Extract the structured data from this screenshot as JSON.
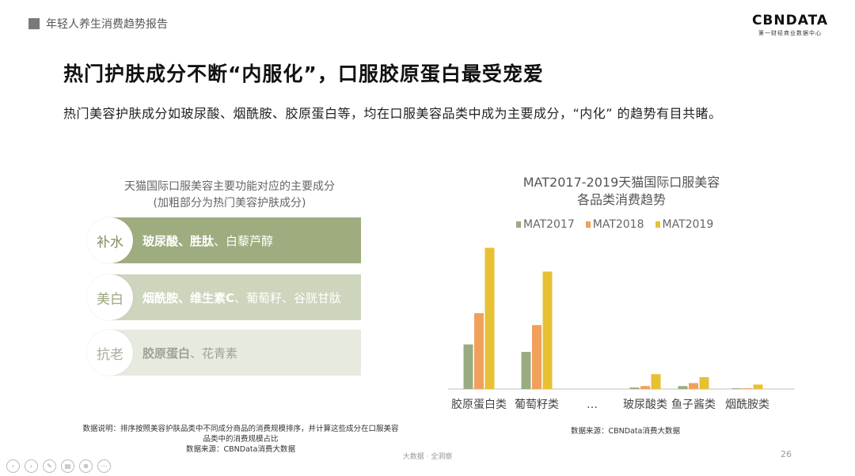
{
  "header": {
    "report_title": "年轻人养生消费趋势报告",
    "logo_brand": "CBNDATA",
    "logo_sub": "第一财经商业数据中心"
  },
  "headline": "热门护肤成分不断“内服化”，口服胶原蛋白最受宠爱",
  "subline": "热门美容护肤成分如玻尿酸、烟酰胺、胶原蛋白等，均在口服美容品类中成为主要成分，“内化” 的趋势有目共睹。",
  "left_panel": {
    "title_line1": "天猫国际口服美容主要功能对应的主要成分",
    "title_line2": "(加粗部分为热门美容护肤成分)",
    "rows": [
      {
        "function": "补水",
        "bold": "玻尿酸、胜肽",
        "rest": "、白藜芦醇"
      },
      {
        "function": "美白",
        "bold": "烟酰胺、维生素C",
        "rest": "、葡萄籽、谷胱甘肽"
      },
      {
        "function": "抗老",
        "bold": "胶原蛋白",
        "rest": "、花青素"
      }
    ],
    "note_line1": "数据说明：排序按照美容护肤品类中不同成分商品的消费规模排序，并计算这些成分在口服美容",
    "note_line2": "品类中的消费规模占比",
    "note_source": "数据来源：CBNData消费大数据"
  },
  "chart_data": {
    "type": "bar",
    "title_line1": "MAT2017-2019天猫国际口服美容",
    "title_line2": "各品类消费趋势",
    "categories": [
      "胶原蛋白类",
      "葡萄籽类",
      "…",
      "玻尿酸类",
      "鱼子酱类",
      "烟酰胺类"
    ],
    "series": [
      {
        "name": "MAT2017",
        "color": "#9aab82",
        "values": [
          30,
          25,
          null,
          1,
          2,
          0.5
        ]
      },
      {
        "name": "MAT2018",
        "color": "#f0a05a",
        "values": [
          51,
          43,
          null,
          2,
          4,
          0.5
        ]
      },
      {
        "name": "MAT2019",
        "color": "#e8c033",
        "values": [
          95,
          79,
          null,
          10,
          8,
          3
        ]
      }
    ],
    "source": "数据来源：CBNData消费大数据"
  },
  "footer": {
    "center": "大数据 · 全洞察",
    "page": "26"
  }
}
